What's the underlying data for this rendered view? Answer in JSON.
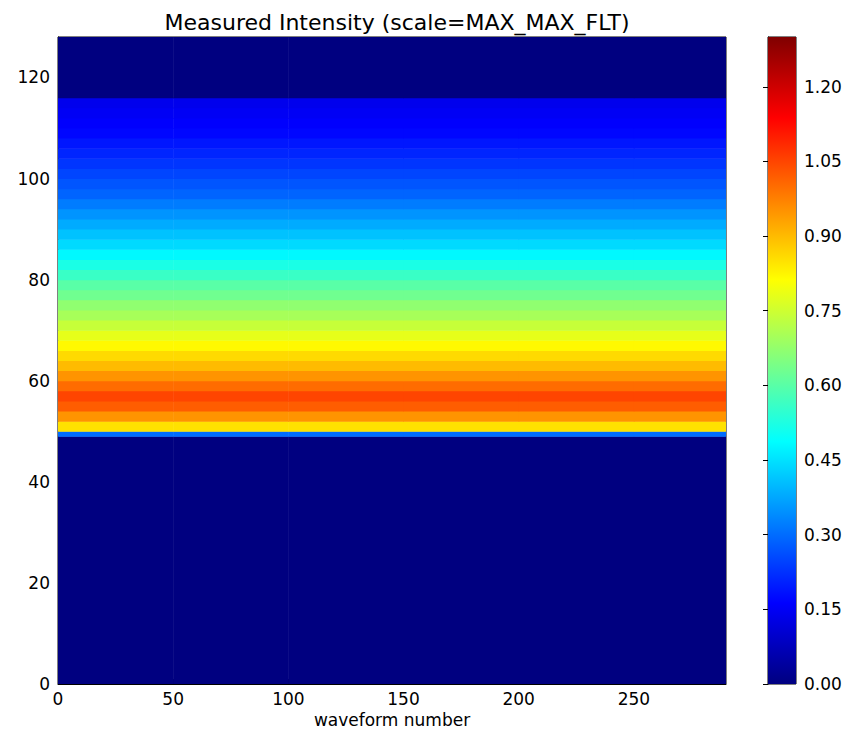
{
  "chart_data": {
    "type": "heatmap",
    "title": "Measured Intensity (scale=MAX_MAX_FLT)",
    "x_label": "waveform number",
    "xlim": [
      0,
      290
    ],
    "xticks": [
      0,
      50,
      100,
      150,
      200,
      250
    ],
    "ylim": [
      0,
      128
    ],
    "yticks": [
      0,
      20,
      40,
      60,
      80,
      100,
      120
    ],
    "grid": false,
    "x_bins": [
      0,
      50,
      100,
      150,
      200,
      250,
      290
    ],
    "y_bins": [
      0,
      49,
      50,
      52,
      54,
      56,
      58,
      60,
      62,
      64,
      66,
      68,
      70,
      72,
      74,
      76,
      78,
      80,
      82,
      84,
      86,
      88,
      90,
      92,
      94,
      96,
      98,
      100,
      102,
      104,
      106,
      108,
      110,
      112,
      114,
      116,
      128
    ],
    "cells": [
      [
        0,
        0,
        0,
        0,
        0,
        0
      ],
      [
        0.3,
        0.3,
        0.3,
        0.3,
        0.3,
        0.3
      ],
      [
        0.85,
        0.85,
        0.85,
        0.85,
        0.85,
        0.85
      ],
      [
        0.95,
        0.95,
        0.95,
        0.95,
        0.95,
        0.95
      ],
      [
        1.02,
        1.02,
        1.02,
        1.02,
        1.02,
        1.02
      ],
      [
        1.05,
        1.05,
        1.05,
        1.05,
        1.05,
        1.05
      ],
      [
        1.0,
        1.0,
        1.0,
        1.0,
        1.0,
        1.0
      ],
      [
        0.95,
        0.95,
        0.95,
        0.95,
        0.95,
        0.95
      ],
      [
        0.9,
        0.9,
        0.9,
        0.9,
        0.9,
        0.9
      ],
      [
        0.86,
        0.86,
        0.86,
        0.86,
        0.86,
        0.86
      ],
      [
        0.82,
        0.82,
        0.82,
        0.82,
        0.82,
        0.82
      ],
      [
        0.78,
        0.78,
        0.78,
        0.78,
        0.78,
        0.78
      ],
      [
        0.74,
        0.74,
        0.74,
        0.74,
        0.74,
        0.74
      ],
      [
        0.7,
        0.7,
        0.7,
        0.7,
        0.7,
        0.7
      ],
      [
        0.67,
        0.67,
        0.67,
        0.67,
        0.67,
        0.67
      ],
      [
        0.63,
        0.63,
        0.63,
        0.63,
        0.63,
        0.63
      ],
      [
        0.6,
        0.6,
        0.6,
        0.6,
        0.6,
        0.6
      ],
      [
        0.56,
        0.56,
        0.56,
        0.56,
        0.56,
        0.56
      ],
      [
        0.52,
        0.52,
        0.52,
        0.52,
        0.52,
        0.52
      ],
      [
        0.48,
        0.48,
        0.48,
        0.48,
        0.48,
        0.48
      ],
      [
        0.44,
        0.44,
        0.44,
        0.44,
        0.44,
        0.44
      ],
      [
        0.41,
        0.41,
        0.41,
        0.41,
        0.41,
        0.41
      ],
      [
        0.38,
        0.38,
        0.38,
        0.38,
        0.38,
        0.38
      ],
      [
        0.35,
        0.35,
        0.35,
        0.35,
        0.35,
        0.35
      ],
      [
        0.32,
        0.32,
        0.32,
        0.32,
        0.32,
        0.32
      ],
      [
        0.29,
        0.29,
        0.29,
        0.29,
        0.29,
        0.29
      ],
      [
        0.27,
        0.27,
        0.27,
        0.27,
        0.27,
        0.27
      ],
      [
        0.25,
        0.25,
        0.25,
        0.25,
        0.25,
        0.25
      ],
      [
        0.23,
        0.23,
        0.23,
        0.23,
        0.23,
        0.23
      ],
      [
        0.21,
        0.21,
        0.21,
        0.21,
        0.21,
        0.21
      ],
      [
        0.19,
        0.19,
        0.19,
        0.19,
        0.19,
        0.19
      ],
      [
        0.17,
        0.17,
        0.17,
        0.17,
        0.17,
        0.17
      ],
      [
        0.16,
        0.16,
        0.16,
        0.16,
        0.16,
        0.16
      ],
      [
        0.15,
        0.15,
        0.15,
        0.15,
        0.15,
        0.15
      ],
      [
        0.14,
        0.14,
        0.14,
        0.14,
        0.14,
        0.14
      ],
      [
        0,
        0,
        0,
        0,
        0,
        0
      ]
    ],
    "colorbar": {
      "range": [
        0,
        1.3
      ],
      "ticks": [
        {
          "value": 0,
          "label": "0.00"
        },
        {
          "value": 0.15,
          "label": "0.15"
        },
        {
          "value": 0.3,
          "label": "0.30"
        },
        {
          "value": 0.45,
          "label": "0.45"
        },
        {
          "value": 0.6,
          "label": "0.60"
        },
        {
          "value": 0.75,
          "label": "0.75"
        },
        {
          "value": 0.9,
          "label": "0.90"
        },
        {
          "value": 1.05,
          "label": "1.05"
        },
        {
          "value": 1.2,
          "label": "1.20"
        }
      ]
    }
  }
}
